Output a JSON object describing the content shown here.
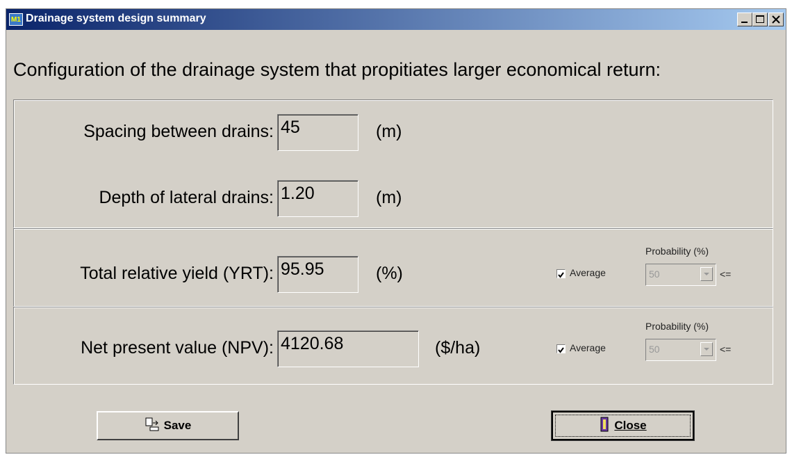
{
  "window": {
    "icon": "M1",
    "title": "Drainage system design summary"
  },
  "heading": "Configuration of the drainage system that propitiates larger economical return:",
  "fields": [
    {
      "label": "Spacing between drains:",
      "value": "45",
      "unit": "(m)"
    },
    {
      "label": "Depth of lateral drains:",
      "value": "1.20",
      "unit": "(m)"
    },
    {
      "label": "Total relative yield (YRT):",
      "value": "95.95",
      "unit": "(%)",
      "average": "Average",
      "probability_label": "Probability (%)",
      "probability": "50",
      "comparator": "<="
    },
    {
      "label": "Net present value (NPV):",
      "value": "4120.68",
      "unit": "($/ha)",
      "average": "Average",
      "probability_label": "Probability (%)",
      "probability": "50",
      "comparator": "<="
    }
  ],
  "buttons": {
    "save": "Save",
    "close": "Close"
  }
}
